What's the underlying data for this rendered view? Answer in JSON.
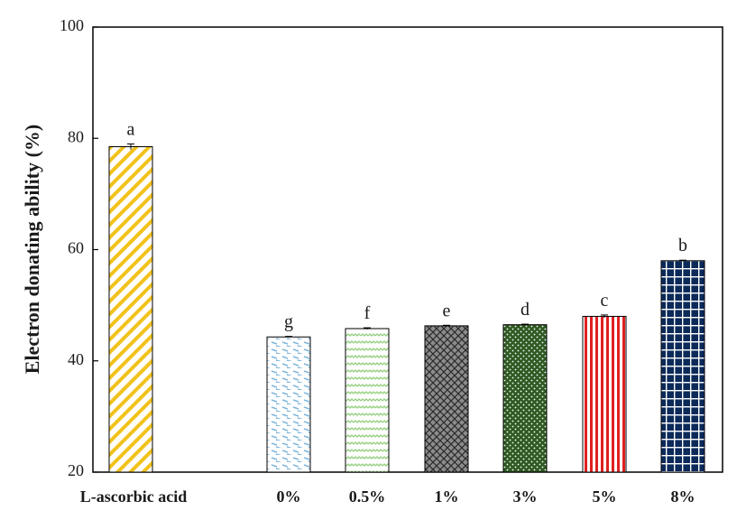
{
  "chart_data": {
    "type": "bar",
    "title": "",
    "xlabel": "",
    "ylabel": "Electron donating ability (%)",
    "ylim": [
      20,
      100
    ],
    "yticks": [
      20,
      40,
      60,
      80,
      100
    ],
    "categories": [
      "L-ascorbic acid",
      "0%",
      "0.5%",
      "1%",
      "3%",
      "5%",
      "8%"
    ],
    "values": [
      78.5,
      44.3,
      45.8,
      46.3,
      46.5,
      48.0,
      58.0
    ],
    "errors": [
      0.5,
      0.1,
      0.15,
      0.1,
      0.1,
      0.25,
      0.1
    ],
    "significance_letters": [
      "a",
      "g",
      "f",
      "e",
      "d",
      "c",
      "b"
    ],
    "bar_styles": [
      {
        "pattern": "diagonal-stripes",
        "color": "#f2c21b"
      },
      {
        "pattern": "dashes",
        "color": "#7fb6dc"
      },
      {
        "pattern": "zigzag",
        "color": "#8fce7a"
      },
      {
        "pattern": "crosshatch",
        "color": "#8c8c8c"
      },
      {
        "pattern": "dots",
        "color": "#2f5a23"
      },
      {
        "pattern": "vertical-stripes",
        "color": "#e02020"
      },
      {
        "pattern": "grid",
        "color": "#0b2a5a"
      }
    ],
    "grid": false,
    "legend": "none"
  }
}
